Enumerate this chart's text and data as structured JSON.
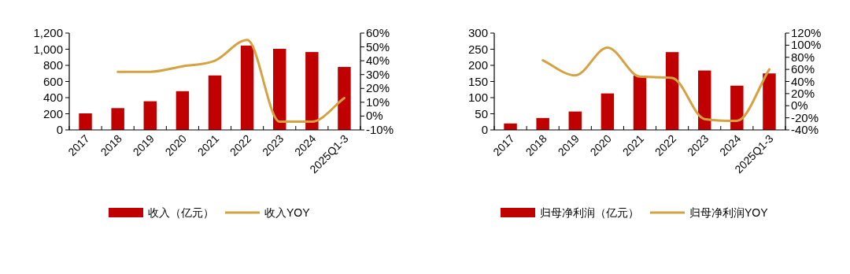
{
  "chart_data": [
    {
      "type": "bar",
      "categories": [
        "2017",
        "2018",
        "2019",
        "2020",
        "2021",
        "2022",
        "2023",
        "2024",
        "2025Q1-3"
      ],
      "series": [
        {
          "name": "收入（亿元）",
          "color": "#c00000",
          "values": [
            205,
            270,
            355,
            480,
            675,
            1045,
            1005,
            965,
            780
          ]
        },
        {
          "name": "收入YOY",
          "type": "line",
          "axis": "y2",
          "color": "#d4a240",
          "values": [
            null,
            32,
            32,
            36,
            40,
            55,
            -4,
            -4,
            13
          ]
        }
      ],
      "ylim": [
        0,
        1200
      ],
      "yticks": [
        0,
        200,
        400,
        600,
        800,
        {
          "value": 1000,
          "label": "1,000"
        },
        {
          "value": 1200,
          "label": "1,200"
        }
      ],
      "y2lim": [
        -10,
        60
      ],
      "y2ticks": [
        {
          "value": -10,
          "label": "-10%"
        },
        {
          "value": 0,
          "label": "0%"
        },
        {
          "value": 10,
          "label": "10%"
        },
        {
          "value": 20,
          "label": "20%"
        },
        {
          "value": 30,
          "label": "30%"
        },
        {
          "value": 40,
          "label": "40%"
        },
        {
          "value": 50,
          "label": "50%"
        },
        {
          "value": 60,
          "label": "60%"
        }
      ],
      "legend": "bottom"
    },
    {
      "type": "bar",
      "categories": [
        "2017",
        "2018",
        "2019",
        "2020",
        "2021",
        "2022",
        "2023",
        "2024",
        "2025Q1-3"
      ],
      "series": [
        {
          "name": "归母净利润（亿元）",
          "color": "#c00000",
          "values": [
            20,
            37,
            57,
            113,
            168,
            241,
            184,
            137,
            175
          ]
        },
        {
          "name": "归母净利润YOY",
          "type": "line",
          "axis": "y2",
          "color": "#d4a240",
          "values": [
            null,
            75,
            50,
            96,
            48,
            46,
            -22,
            -25,
            60
          ]
        }
      ],
      "ylim": [
        0,
        300
      ],
      "yticks": [
        0,
        50,
        100,
        150,
        200,
        250,
        300
      ],
      "y2lim": [
        -40,
        120
      ],
      "y2ticks": [
        {
          "value": -40,
          "label": "-40%"
        },
        {
          "value": -20,
          "label": "-20%"
        },
        {
          "value": 0,
          "label": "0%"
        },
        {
          "value": 20,
          "label": "20%"
        },
        {
          "value": 40,
          "label": "40%"
        },
        {
          "value": 60,
          "label": "60%"
        },
        {
          "value": 80,
          "label": "80%"
        },
        {
          "value": 100,
          "label": "100%"
        },
        {
          "value": 120,
          "label": "120%"
        }
      ],
      "legend": "bottom"
    }
  ]
}
